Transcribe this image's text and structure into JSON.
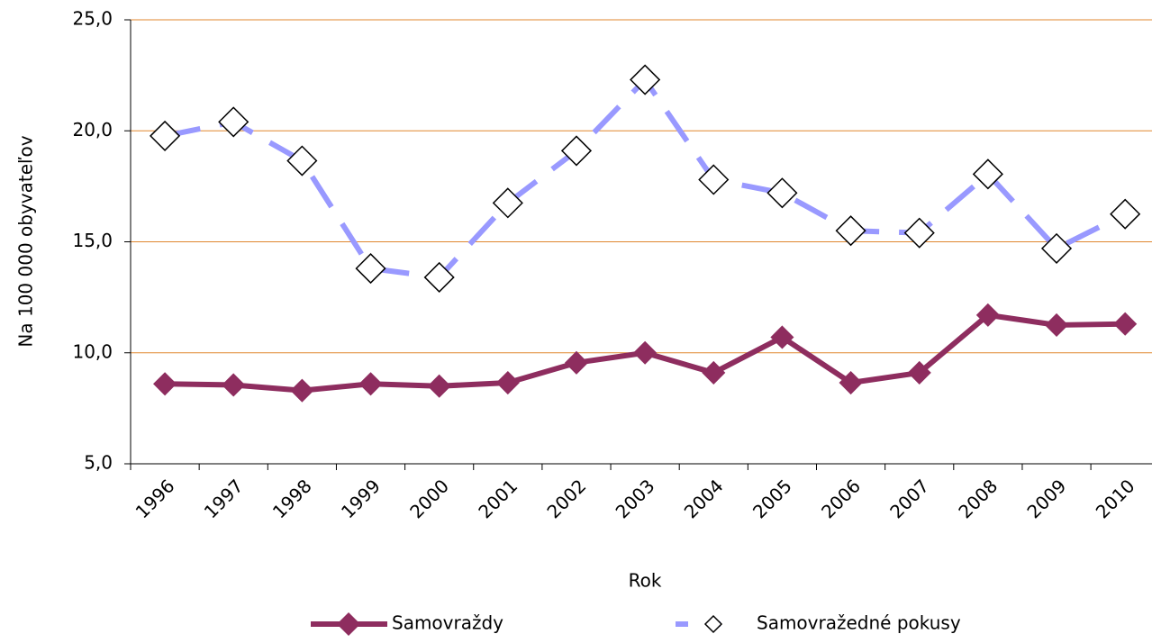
{
  "chart_data": {
    "type": "line",
    "x_label": "Rok",
    "y_label": "Na 100 000 obyvateľov",
    "categories": [
      "1996",
      "1997",
      "1998",
      "1999",
      "2000",
      "2001",
      "2002",
      "2003",
      "2004",
      "2005",
      "2006",
      "2007",
      "2008",
      "2009",
      "2010"
    ],
    "series": [
      {
        "name": "Samovraždy",
        "color": "#8e2d5f",
        "style": "solid",
        "marker": "filled-diamond",
        "values": [
          8.6,
          8.55,
          8.3,
          8.6,
          8.5,
          8.65,
          9.55,
          10.0,
          9.1,
          10.7,
          8.65,
          9.1,
          11.7,
          11.25,
          11.3
        ]
      },
      {
        "name": "Samovražedné pokusy",
        "color": "#9999ff",
        "style": "dashed",
        "marker": "open-diamond",
        "values": [
          19.77,
          20.4,
          18.65,
          13.8,
          13.4,
          16.75,
          19.1,
          22.3,
          17.8,
          17.2,
          15.5,
          15.4,
          18.05,
          14.7,
          16.25
        ]
      }
    ],
    "ylim": [
      5,
      25
    ],
    "yticks": [
      {
        "value": 5,
        "label": "5,0"
      },
      {
        "value": 10,
        "label": "10,0"
      },
      {
        "value": 15,
        "label": "15,0"
      },
      {
        "value": 20,
        "label": "20,0"
      },
      {
        "value": 25,
        "label": "25,0"
      }
    ],
    "grid": true,
    "grid_color": "#e0872f",
    "legend": "bottom"
  }
}
